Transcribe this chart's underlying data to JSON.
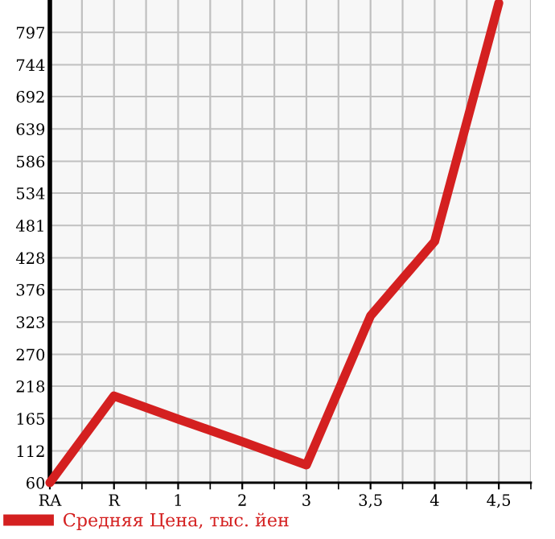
{
  "chart_data": {
    "type": "line",
    "categories": [
      "RA",
      "R",
      "1",
      "2",
      "3",
      "3,5",
      "4",
      "4,5"
    ],
    "series": [
      {
        "name": "Средняя Цена, тыс. йен",
        "color": "#d42020",
        "values": [
          60,
          202,
          164,
          127,
          89,
          333,
          455,
          845
        ]
      }
    ],
    "ylim": [
      60,
      850
    ],
    "yticks": [
      60,
      112,
      165,
      218,
      270,
      323,
      376,
      428,
      481,
      534,
      586,
      639,
      692,
      744,
      797
    ],
    "grid": true,
    "legend": "bottom",
    "marker": "none",
    "line_style": "solid"
  }
}
